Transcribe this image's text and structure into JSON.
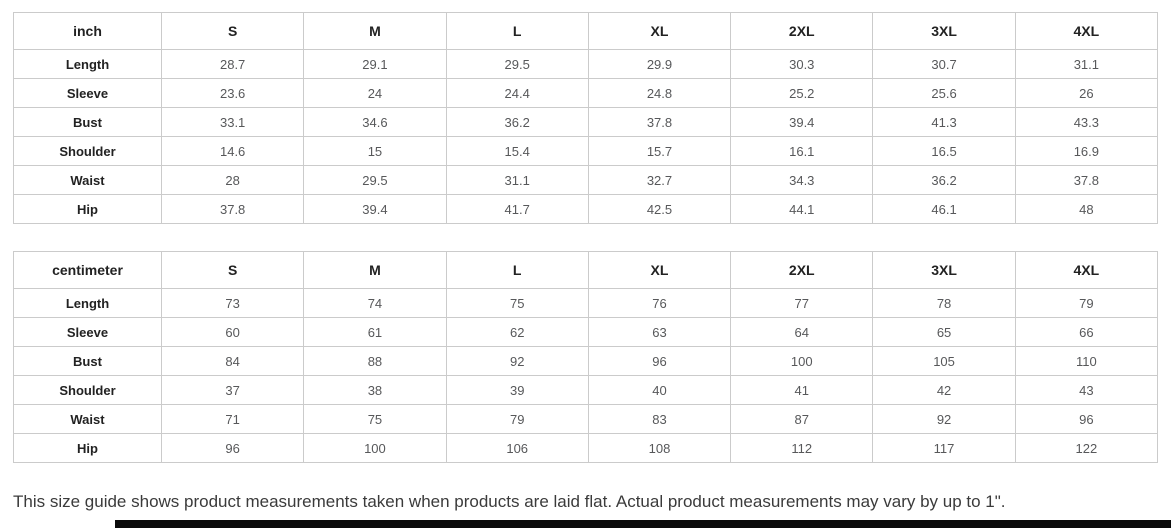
{
  "tables": [
    {
      "unit_label": "inch",
      "sizes": [
        "S",
        "M",
        "L",
        "XL",
        "2XL",
        "3XL",
        "4XL"
      ],
      "rows": [
        {
          "label": "Length",
          "values": [
            "28.7",
            "29.1",
            "29.5",
            "29.9",
            "30.3",
            "30.7",
            "31.1"
          ]
        },
        {
          "label": "Sleeve",
          "values": [
            "23.6",
            "24",
            "24.4",
            "24.8",
            "25.2",
            "25.6",
            "26"
          ]
        },
        {
          "label": "Bust",
          "values": [
            "33.1",
            "34.6",
            "36.2",
            "37.8",
            "39.4",
            "41.3",
            "43.3"
          ]
        },
        {
          "label": "Shoulder",
          "values": [
            "14.6",
            "15",
            "15.4",
            "15.7",
            "16.1",
            "16.5",
            "16.9"
          ]
        },
        {
          "label": "Waist",
          "values": [
            "28",
            "29.5",
            "31.1",
            "32.7",
            "34.3",
            "36.2",
            "37.8"
          ]
        },
        {
          "label": "Hip",
          "values": [
            "37.8",
            "39.4",
            "41.7",
            "42.5",
            "44.1",
            "46.1",
            "48"
          ]
        }
      ]
    },
    {
      "unit_label": "centimeter",
      "sizes": [
        "S",
        "M",
        "L",
        "XL",
        "2XL",
        "3XL",
        "4XL"
      ],
      "rows": [
        {
          "label": "Length",
          "values": [
            "73",
            "74",
            "75",
            "76",
            "77",
            "78",
            "79"
          ]
        },
        {
          "label": "Sleeve",
          "values": [
            "60",
            "61",
            "62",
            "63",
            "64",
            "65",
            "66"
          ]
        },
        {
          "label": "Bust",
          "values": [
            "84",
            "88",
            "92",
            "96",
            "100",
            "105",
            "110"
          ]
        },
        {
          "label": "Shoulder",
          "values": [
            "37",
            "38",
            "39",
            "40",
            "41",
            "42",
            "43"
          ]
        },
        {
          "label": "Waist",
          "values": [
            "71",
            "75",
            "79",
            "83",
            "87",
            "92",
            "96"
          ]
        },
        {
          "label": "Hip",
          "values": [
            "96",
            "100",
            "106",
            "108",
            "112",
            "117",
            "122"
          ]
        }
      ]
    }
  ],
  "footer": {
    "note": "This size guide shows product measurements taken when products are laid flat. Actual product measurements may vary by up to 1\"."
  },
  "colors": {
    "table_border": "#cbcbcb",
    "header_text": "#222222",
    "cell_text": "#57585a",
    "note_text": "#3b3b3b",
    "scrollbar_thumb": "#0a0a0a"
  }
}
